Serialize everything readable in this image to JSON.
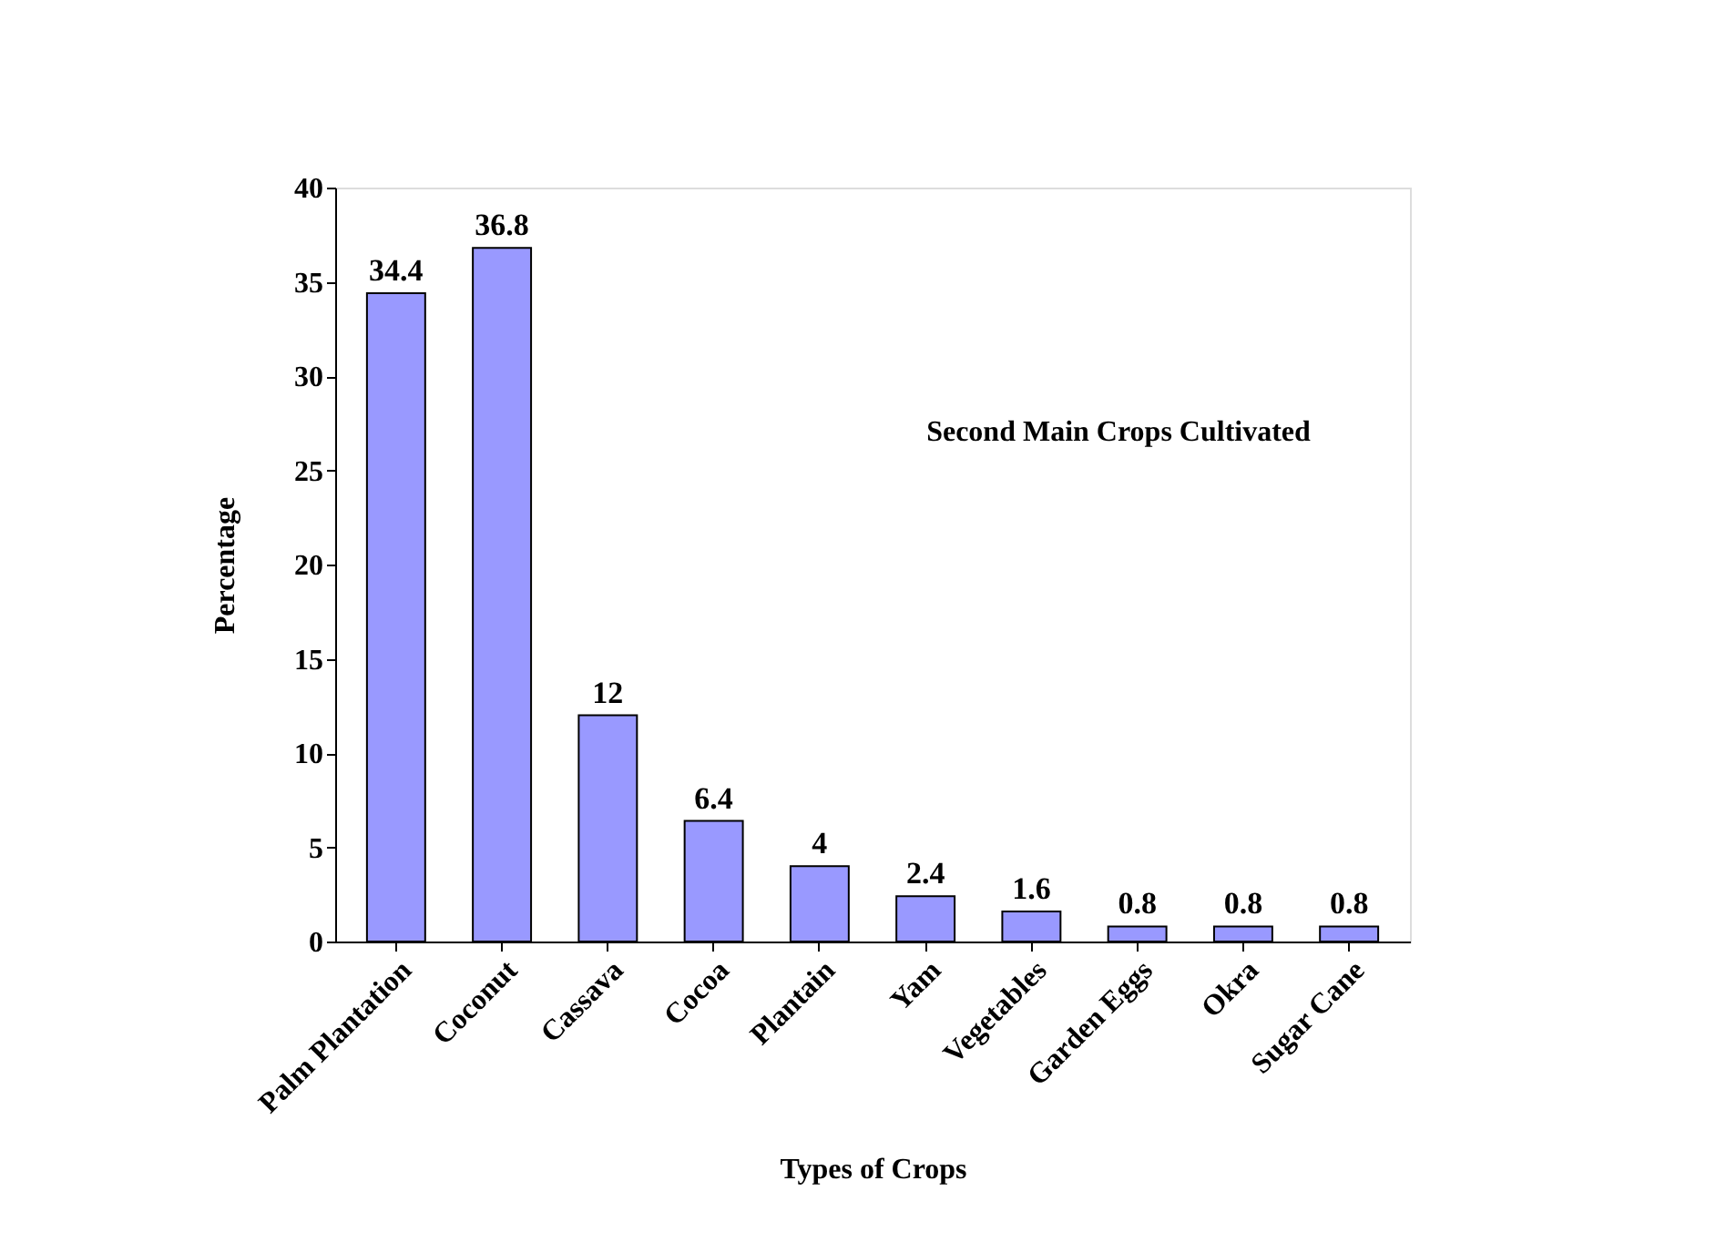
{
  "chart_data": {
    "type": "bar",
    "title": "Second Main Crops Cultivated",
    "xlabel": "Types of Crops",
    "ylabel": "Percentage",
    "categories": [
      "Palm Plantation",
      "Coconut",
      "Cassava",
      "Cocoa",
      "Plantain",
      "Yam",
      "Vegetables",
      "Garden Eggs",
      "Okra",
      "Sugar Cane"
    ],
    "values": [
      34.4,
      36.8,
      12,
      6.4,
      4,
      2.4,
      1.6,
      0.8,
      0.8,
      0.8
    ],
    "color": "#9999ff",
    "ylim": [
      0,
      40
    ],
    "yticks": [
      0,
      5,
      10,
      15,
      20,
      25,
      30,
      35,
      40
    ],
    "grid": false,
    "data_labels": true
  }
}
